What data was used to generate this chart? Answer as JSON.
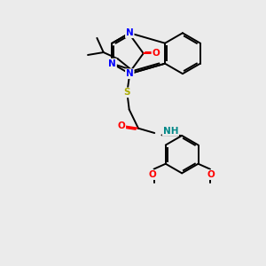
{
  "bg_color": "#ebebeb",
  "atom_colors": {
    "N": "#0000ff",
    "O": "#ff0000",
    "S": "#aaaa00",
    "C": "#000000",
    "H": "#008888"
  },
  "bond_color": "#000000",
  "bond_width": 1.4,
  "font_size": 7.5,
  "figsize": [
    3.0,
    3.0
  ],
  "dpi": 100
}
